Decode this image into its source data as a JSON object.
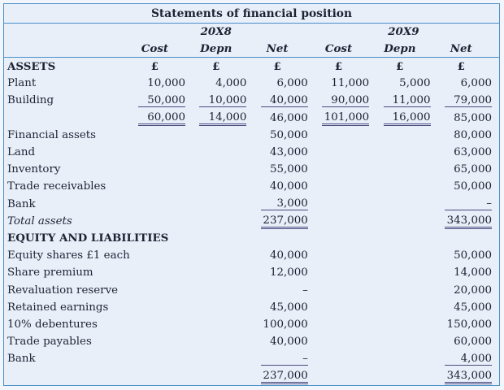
{
  "colors": {
    "accent_blue": "#4a90c8",
    "fill_light_blue": "#e8eff9",
    "outer_background": "#f2f6fc",
    "text_navy": "#1f2233",
    "underline_purple": "#4a4a7e"
  },
  "table": {
    "title": "Statements of financial position",
    "years": [
      "20X8",
      "20X9"
    ],
    "column_headers": [
      "Cost",
      "Depn",
      "Net",
      "Cost",
      "Depn",
      "Net"
    ],
    "currency_symbol": "£",
    "rows": [
      {
        "label": "ASSETS",
        "label_style": "bold",
        "bold_cells": true,
        "align": "center",
        "cells": [
          "£",
          "£",
          "£",
          "£",
          "£",
          "£"
        ]
      },
      {
        "label": "Plant",
        "cells": [
          "10,000",
          "4,000",
          "6,000",
          "11,000",
          "5,000",
          "6,000"
        ]
      },
      {
        "label": "Building",
        "cells": [
          {
            "v": "50,000",
            "u": 1
          },
          {
            "v": "10,000",
            "u": 1
          },
          {
            "v": "40,000",
            "u": 1
          },
          {
            "v": "90,000",
            "u": 1
          },
          {
            "v": "11,000",
            "u": 1
          },
          {
            "v": "79,000",
            "u": 1
          }
        ]
      },
      {
        "label": "",
        "cells": [
          {
            "v": "60,000",
            "u": 2
          },
          {
            "v": "14,000",
            "u": 2
          },
          "46,000",
          {
            "v": "101,000",
            "u": 2
          },
          {
            "v": "16,000",
            "u": 2
          },
          "85,000"
        ]
      },
      {
        "label": "Financial assets",
        "cells": [
          "",
          "",
          "50,000",
          "",
          "",
          "80,000"
        ]
      },
      {
        "label": "Land",
        "cells": [
          "",
          "",
          "43,000",
          "",
          "",
          "63,000"
        ]
      },
      {
        "label": "Inventory",
        "cells": [
          "",
          "",
          "55,000",
          "",
          "",
          "65,000"
        ]
      },
      {
        "label": "Trade receivables",
        "cells": [
          "",
          "",
          "40,000",
          "",
          "",
          "50,000"
        ]
      },
      {
        "label": "Bank",
        "cells": [
          "",
          "",
          {
            "v": "3,000",
            "u": 1
          },
          "",
          "",
          {
            "v": "–",
            "u": 1
          }
        ]
      },
      {
        "label": "Total assets",
        "label_style": "italic",
        "cells": [
          "",
          "",
          {
            "v": "237,000",
            "u": 2
          },
          "",
          "",
          {
            "v": "343,000",
            "u": 2
          }
        ]
      },
      {
        "label": "EQUITY AND LIABILITIES",
        "label_style": "bold",
        "cells": [
          "",
          "",
          "",
          "",
          "",
          ""
        ]
      },
      {
        "label": "Equity shares £1 each",
        "cells": [
          "",
          "",
          "40,000",
          "",
          "",
          "50,000"
        ]
      },
      {
        "label": "Share premium",
        "cells": [
          "",
          "",
          "12,000",
          "",
          "",
          "14,000"
        ]
      },
      {
        "label": "Revaluation reserve",
        "cells": [
          "",
          "",
          "–",
          "",
          "",
          "20,000"
        ]
      },
      {
        "label": "Retained earnings",
        "cells": [
          "",
          "",
          "45,000",
          "",
          "",
          "45,000"
        ]
      },
      {
        "label": "10% debentures",
        "cells": [
          "",
          "",
          "100,000",
          "",
          "",
          "150,000"
        ]
      },
      {
        "label": "Trade payables",
        "cells": [
          "",
          "",
          "40,000",
          "",
          "",
          "60,000"
        ]
      },
      {
        "label": "Bank",
        "cells": [
          "",
          "",
          {
            "v": "–",
            "u": 1
          },
          "",
          "",
          {
            "v": "4,000",
            "u": 1
          }
        ]
      },
      {
        "label": "",
        "cells": [
          "",
          "",
          {
            "v": "237,000",
            "u": 2
          },
          "",
          "",
          {
            "v": "343,000",
            "u": 2
          }
        ]
      }
    ]
  }
}
